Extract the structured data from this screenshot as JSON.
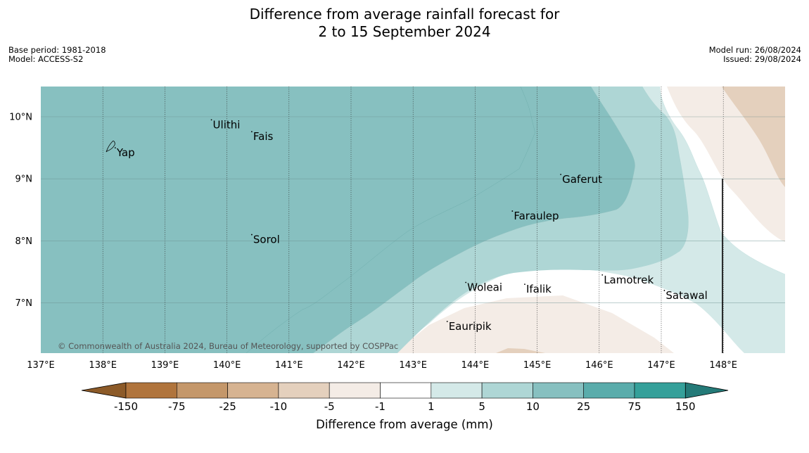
{
  "title": {
    "line1": "Difference from average rainfall forecast for",
    "line2": "2 to 15 September 2024"
  },
  "info_left": {
    "base_period": "Base period: 1981-2018",
    "model": "Model: ACCESS-S2"
  },
  "info_right": {
    "model_run": "Model run: 26/08/2024",
    "issued": "Issued: 29/08/2024"
  },
  "map": {
    "lon_range": [
      137,
      149
    ],
    "lat_range": [
      6.2,
      10.5
    ],
    "lon_ticks": [
      {
        "value": 137,
        "label": "137°E"
      },
      {
        "value": 138,
        "label": "138°E"
      },
      {
        "value": 139,
        "label": "139°E"
      },
      {
        "value": 140,
        "label": "140°E"
      },
      {
        "value": 141,
        "label": "141°E"
      },
      {
        "value": 142,
        "label": "142°E"
      },
      {
        "value": 143,
        "label": "143°E"
      },
      {
        "value": 144,
        "label": "144°E"
      },
      {
        "value": 145,
        "label": "145°E"
      },
      {
        "value": 146,
        "label": "146°E"
      },
      {
        "value": 147,
        "label": "147°E"
      },
      {
        "value": 148,
        "label": "148°E"
      }
    ],
    "lat_ticks": [
      {
        "value": 10,
        "label": "10°N"
      },
      {
        "value": 9,
        "label": "9°N"
      },
      {
        "value": 8,
        "label": "8°N"
      },
      {
        "value": 7,
        "label": "7°N"
      }
    ],
    "copyright": "© Commonwealth of Australia 2024, Bureau of Meteorology, supported by COSPPac",
    "places": [
      {
        "name": "Yap",
        "lon": 138.2,
        "lat": 9.5
      },
      {
        "name": "Ulithi",
        "lon": 139.75,
        "lat": 9.95
      },
      {
        "name": "Fais",
        "lon": 140.4,
        "lat": 9.76
      },
      {
        "name": "Gaferut",
        "lon": 145.38,
        "lat": 9.07
      },
      {
        "name": "Faraulep",
        "lon": 144.6,
        "lat": 8.48
      },
      {
        "name": "Sorol",
        "lon": 140.4,
        "lat": 8.1
      },
      {
        "name": "Lamotrek",
        "lon": 146.05,
        "lat": 7.45
      },
      {
        "name": "Woleai",
        "lon": 143.85,
        "lat": 7.33
      },
      {
        "name": "Ifalik",
        "lon": 144.8,
        "lat": 7.3
      },
      {
        "name": "Satawal",
        "lon": 147.05,
        "lat": 7.2
      },
      {
        "name": "Eauripik",
        "lon": 143.55,
        "lat": 6.7
      }
    ]
  },
  "colorbar": {
    "label": "Difference from average (mm)",
    "ticks": [
      "-150",
      "-75",
      "-25",
      "-10",
      "-5",
      "-1",
      "1",
      "5",
      "10",
      "25",
      "75",
      "150"
    ],
    "colors": {
      "below_-150": "#8c5a28",
      "-150_-75": "#b0743c",
      "-75_-25": "#c4976a",
      "-25_-10": "#d6b391",
      "-10_-5": "#e4d0bd",
      "-5_-1": "#f4ece6",
      "-1_1": "#ffffff",
      "1_5": "#d4e9e8",
      "5_10": "#aed6d5",
      "10_25": "#87c0c0",
      "25_75": "#5aacab",
      "75_150": "#35a09a",
      "above_150": "#247a78"
    }
  }
}
